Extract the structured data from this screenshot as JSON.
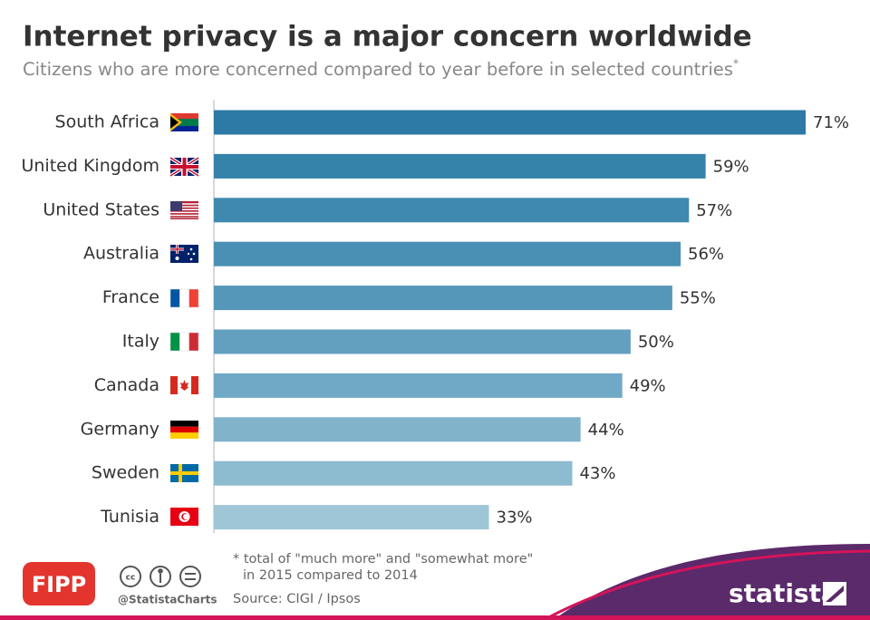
{
  "chart_data": {
    "type": "bar",
    "orientation": "horizontal",
    "title": "Internet privacy is a major concern worldwide",
    "subtitle": "Citizens who are more concerned compared to year before in selected countries",
    "subtitle_marker": "*",
    "categories": [
      "South Africa",
      "United Kingdom",
      "United States",
      "Australia",
      "France",
      "Italy",
      "Canada",
      "Germany",
      "Sweden",
      "Tunisia"
    ],
    "values": [
      71,
      59,
      57,
      56,
      55,
      50,
      49,
      44,
      43,
      33
    ],
    "value_labels": [
      "71%",
      "59%",
      "57%",
      "56%",
      "55%",
      "50%",
      "49%",
      "44%",
      "43%",
      "33%"
    ],
    "colors": [
      "#2c7aa5",
      "#3582ab",
      "#3f89af",
      "#4a90b4",
      "#5597b9",
      "#63a0c0",
      "#70a9c5",
      "#81b3cb",
      "#8dbbd0",
      "#9fc6d7"
    ],
    "footnote": [
      "* total of \"much more\" and \"somewhat more\"",
      "in 2015 compared to 2014"
    ],
    "source": "Source: CIGI / Ipsos",
    "credit": "@StatistaCharts",
    "publisher_logo": "FIPP",
    "brand": "statista"
  }
}
